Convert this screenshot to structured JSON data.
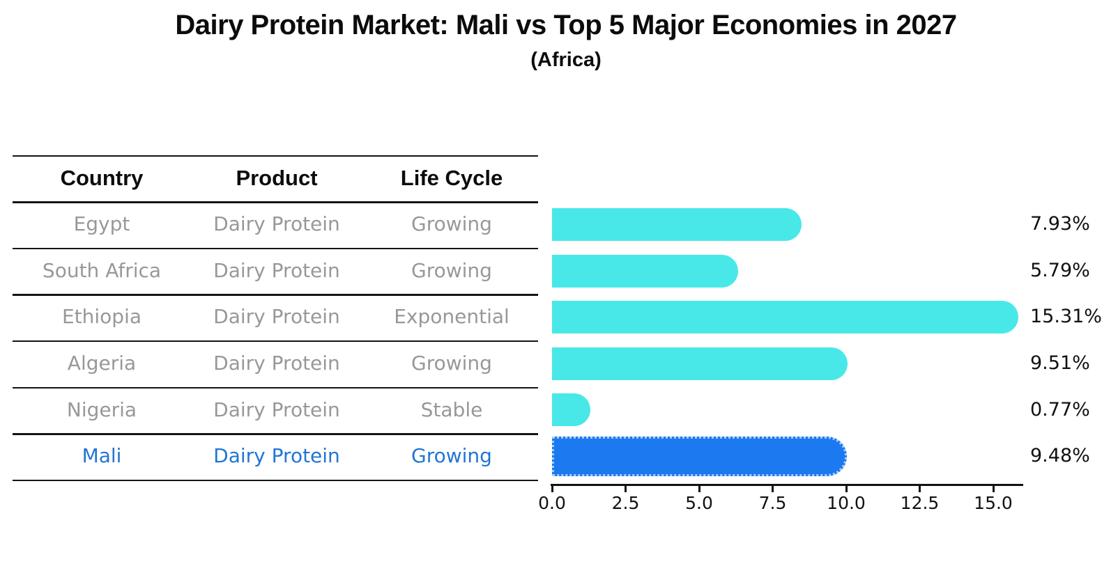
{
  "title": "Dairy Protein Market: Mali vs Top 5 Major Economies in 2027",
  "subtitle": "(Africa)",
  "table": {
    "headers": [
      "Country",
      "Product",
      "Life Cycle"
    ],
    "rows": [
      {
        "country": "Egypt",
        "product": "Dairy Protein",
        "life_cycle": "Growing"
      },
      {
        "country": "South Africa",
        "product": "Dairy Protein",
        "life_cycle": "Growing"
      },
      {
        "country": "Ethiopia",
        "product": "Dairy Protein",
        "life_cycle": "Exponential"
      },
      {
        "country": "Algeria",
        "product": "Dairy Protein",
        "life_cycle": "Growing"
      },
      {
        "country": "Nigeria",
        "product": "Dairy Protein",
        "life_cycle": "Stable"
      },
      {
        "country": "Mali",
        "product": "Dairy Protein",
        "life_cycle": "Growing"
      }
    ],
    "highlighted_row": "Mali"
  },
  "chart_data": {
    "type": "bar",
    "orientation": "horizontal",
    "title": "Dairy Protein Market: Mali vs Top 5 Major Economies in 2027",
    "subtitle": "(Africa)",
    "categories": [
      "Egypt",
      "South Africa",
      "Ethiopia",
      "Algeria",
      "Nigeria",
      "Mali"
    ],
    "values": [
      7.93,
      5.79,
      15.31,
      9.51,
      0.77,
      9.48
    ],
    "value_labels": [
      "7.93%",
      "5.79%",
      "15.31%",
      "9.51%",
      "0.77%",
      "9.48%"
    ],
    "x_tick_values": [
      0,
      2.5,
      5,
      7.5,
      10,
      12.5,
      15
    ],
    "x_tick_labels": [
      "0.0",
      "2.5",
      "5.0",
      "7.5",
      "10.0",
      "12.5",
      "15.0"
    ],
    "xlim": [
      0,
      16
    ],
    "xlabel": "",
    "ylabel": "",
    "grid": false,
    "legend": null,
    "highlight_index": 5,
    "bar_color": "#48E8E8",
    "highlight_bar_color": "#1C79F0"
  },
  "colors": {
    "bar": "#48E8E8",
    "highlight_bar": "#1C79F0",
    "highlight_border": "#A8CEFB",
    "highlight_text": "#2176D2",
    "muted_text": "#989898",
    "ink": "#111111"
  }
}
